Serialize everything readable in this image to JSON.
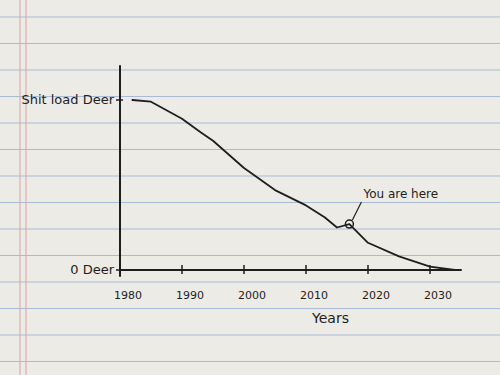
{
  "chart_data": {
    "type": "line",
    "color": "#1e1e1e",
    "x_label": "Years",
    "x": [
      1982,
      1985,
      1990,
      1993,
      1995,
      2000,
      2005,
      2010,
      2013,
      2015,
      2017,
      2020,
      2025,
      2030,
      2034
    ],
    "values": [
      100,
      99,
      89,
      81,
      76,
      60,
      47,
      38,
      31,
      25,
      27,
      16,
      8,
      2,
      0
    ],
    "xlim": [
      1980,
      2035
    ],
    "xticks": [
      1980,
      1990,
      2000,
      2010,
      2020,
      2030
    ],
    "ylim": [
      0,
      120
    ],
    "yticks": [
      {
        "value": 0,
        "label": "0 Deer"
      },
      {
        "value": 100,
        "label": "Shit load Deer"
      }
    ],
    "grid": false,
    "annotations": [
      {
        "text": "You are here",
        "x": 2017,
        "y": 27
      }
    ]
  }
}
